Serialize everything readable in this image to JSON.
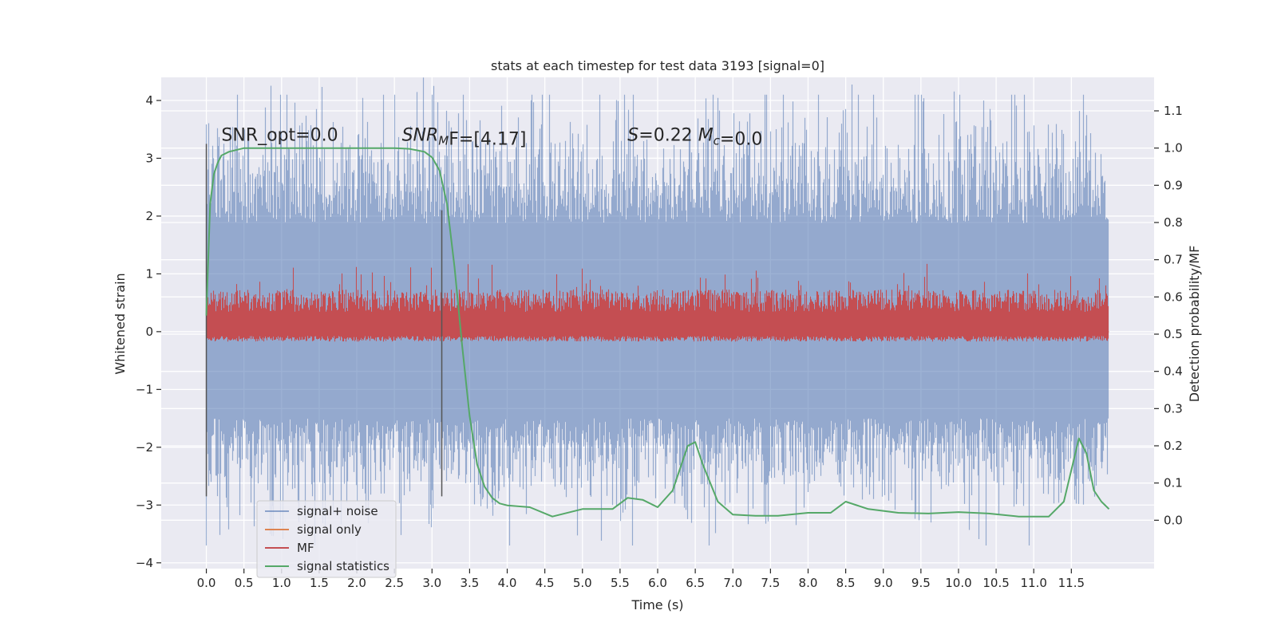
{
  "chart_data": {
    "type": "line",
    "title": "stats at each timestep for test data 3193 [signal=0]",
    "xlabel": "Time (s)",
    "ylabel": "Whitened strain",
    "y2label": "Detection probability/MF",
    "xlim": [
      -0.6,
      12.6
    ],
    "ylim": [
      -4.1,
      4.4
    ],
    "y2lim": [
      -0.13,
      1.19
    ],
    "xticks": [
      "0.0",
      "0.5",
      "1.0",
      "1.5",
      "2.0",
      "2.5",
      "3.0",
      "3.5",
      "4.0",
      "4.5",
      "5.0",
      "5.5",
      "6.0",
      "6.5",
      "7.0",
      "7.5",
      "8.0",
      "8.5",
      "9.0",
      "9.5",
      "10.0",
      "10.5",
      "11.0",
      "11.5"
    ],
    "xtick_values": [
      0,
      0.5,
      1,
      1.5,
      2,
      2.5,
      3,
      3.5,
      4,
      4.5,
      5,
      5.5,
      6,
      6.5,
      7,
      7.5,
      8,
      8.5,
      9,
      9.5,
      10,
      10.5,
      11,
      11.5
    ],
    "yticks": [
      "4",
      "3",
      "2",
      "1",
      "0",
      "−1",
      "−2",
      "−3",
      "−4"
    ],
    "ytick_values": [
      4,
      3,
      2,
      1,
      0,
      -1,
      -2,
      -3,
      -4
    ],
    "y2ticks": [
      "1.1",
      "1.0",
      "0.9",
      "0.8",
      "0.7",
      "0.6",
      "0.5",
      "0.4",
      "0.3",
      "0.2",
      "0.1",
      "0.0"
    ],
    "y2tick_values": [
      1.1,
      1.0,
      0.9,
      0.8,
      0.7,
      0.6,
      0.5,
      0.4,
      0.3,
      0.2,
      0.1,
      0.0
    ],
    "grid": true,
    "legend_position": "lower-left",
    "colors": {
      "background": "#eaeaf2",
      "grid": "#ffffff",
      "noise": "#4c72b0",
      "signal_only": "#dd8452",
      "mf": "#c44e52",
      "statistics": "#55a868",
      "marker_line": "#555555"
    },
    "noise_band": {
      "t_start": 0.0,
      "t_end": 12.0,
      "typical_range": [
        -2.0,
        2.5
      ],
      "extreme_range": [
        -3.7,
        4.1
      ]
    },
    "series": [
      {
        "name": "signal+ noise",
        "style": "noise-band"
      },
      {
        "name": "signal only",
        "values_y": 0.0,
        "t_start": 0.0,
        "t_end": 12.0
      },
      {
        "name": "MF",
        "axis": "right",
        "baseline": 0.5,
        "typical_range": [
          0.48,
          0.62
        ],
        "t_start": 0.0,
        "t_end": 12.0
      },
      {
        "name": "signal statistics",
        "axis": "right",
        "x": [
          0.0,
          0.05,
          0.1,
          0.15,
          0.2,
          0.3,
          0.5,
          1.0,
          1.5,
          2.0,
          2.5,
          2.7,
          2.9,
          3.0,
          3.1,
          3.2,
          3.3,
          3.4,
          3.5,
          3.6,
          3.7,
          3.8,
          3.9,
          4.0,
          4.3,
          4.6,
          5.0,
          5.4,
          5.6,
          5.8,
          6.0,
          6.2,
          6.4,
          6.5,
          6.6,
          6.8,
          7.0,
          7.3,
          7.6,
          8.0,
          8.3,
          8.5,
          8.8,
          9.2,
          9.6,
          10.0,
          10.4,
          10.8,
          11.2,
          11.4,
          11.6,
          11.7,
          11.8,
          11.9,
          12.0
        ],
        "values": [
          0.55,
          0.85,
          0.93,
          0.96,
          0.98,
          0.99,
          1.0,
          1.0,
          1.0,
          1.0,
          1.0,
          0.998,
          0.99,
          0.975,
          0.94,
          0.85,
          0.68,
          0.47,
          0.28,
          0.15,
          0.09,
          0.06,
          0.045,
          0.04,
          0.035,
          0.01,
          0.03,
          0.03,
          0.06,
          0.055,
          0.035,
          0.08,
          0.2,
          0.21,
          0.15,
          0.05,
          0.015,
          0.012,
          0.012,
          0.02,
          0.02,
          0.05,
          0.03,
          0.02,
          0.018,
          0.022,
          0.018,
          0.01,
          0.01,
          0.05,
          0.22,
          0.18,
          0.08,
          0.05,
          0.03
        ]
      }
    ],
    "vertical_lines": [
      {
        "x": 0.0,
        "y_top": 3.25,
        "y_bottom": -2.85
      },
      {
        "x": 3.13,
        "y_top": 2.1,
        "y_bottom": -2.85
      }
    ],
    "annotations": [
      {
        "text": "SNR_opt=0.0",
        "x": 0.2,
        "y": 3.3
      },
      {
        "parts": [
          {
            "t": "SNR",
            "italic": true
          },
          {
            "t": "M",
            "italic": true,
            "sub": true
          },
          {
            "t": "F=[4.17]"
          }
        ],
        "x": 2.6,
        "y": 3.3
      },
      {
        "parts": [
          {
            "t": "S",
            "italic": true
          },
          {
            "t": "=0.22   "
          },
          {
            "t": "M",
            "italic": true
          },
          {
            "t": "c",
            "italic": true,
            "sub": true
          },
          {
            "t": "=0.0"
          }
        ],
        "x": 5.6,
        "y": 3.3
      }
    ]
  }
}
